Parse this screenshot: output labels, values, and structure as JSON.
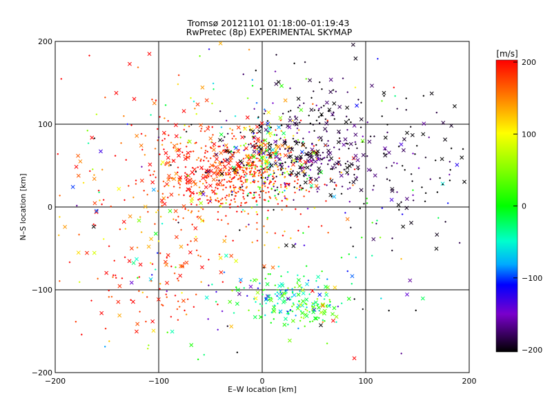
{
  "chart_data": {
    "type": "scatter",
    "title": "Tromsø 20121101 01:18:00–01:19:43",
    "subtitle": "RwPretec (8p) EXPERIMENTAL SKYMAP",
    "xlabel": "E–W location [km]",
    "ylabel": "N–S location [km]",
    "xlim": [
      -200,
      200
    ],
    "ylim": [
      -200,
      200
    ],
    "x_ticks": [
      -200,
      -100,
      0,
      100,
      200
    ],
    "y_ticks": [
      -200,
      -100,
      0,
      100,
      200
    ],
    "x_tick_labels": [
      "−200",
      "−100",
      "0",
      "100",
      "200"
    ],
    "y_tick_labels": [
      "−200",
      "−100",
      "0",
      "100",
      "200"
    ],
    "grid": "on",
    "colorbar": {
      "label": "[m/s]",
      "range": [
        -200,
        200
      ],
      "ticks": [
        200,
        100,
        0,
        -100,
        -200
      ],
      "tick_labels": [
        "200",
        "100",
        "0",
        "−100",
        "−200"
      ]
    },
    "markers": {
      "near_range": "dot",
      "far_range": "cross"
    },
    "clusters": [
      {
        "cx": -30,
        "cy": 40,
        "sx": 40,
        "sy": 25,
        "vmean": 185,
        "vsd": 25,
        "n": 520
      },
      {
        "cx": 5,
        "cy": 45,
        "sx": 18,
        "sy": 30,
        "vmean": 60,
        "vsd": 80,
        "n": 160
      },
      {
        "cx": 40,
        "cy": 60,
        "sx": 40,
        "sy": 25,
        "vmean": -185,
        "vsd": 25,
        "n": 300
      },
      {
        "cx": 60,
        "cy": 130,
        "sx": 35,
        "sy": 30,
        "vmean": -190,
        "vsd": 15,
        "n": 70
      },
      {
        "cx": 20,
        "cy": -110,
        "sx": 25,
        "sy": 15,
        "vmean": -30,
        "vsd": 50,
        "n": 150
      },
      {
        "cx": 50,
        "cy": -125,
        "sx": 12,
        "sy": 10,
        "vmean": 20,
        "vsd": 40,
        "n": 40
      },
      {
        "cx": -80,
        "cy": 20,
        "sx": 70,
        "sy": 90,
        "vmean": 170,
        "vsd": 50,
        "n": 260
      },
      {
        "cx": 20,
        "cy": 0,
        "sx": 110,
        "sy": 110,
        "vmean": -60,
        "vsd": 130,
        "n": 220
      },
      {
        "cx": 130,
        "cy": 40,
        "sx": 40,
        "sy": 60,
        "vmean": -190,
        "vsd": 20,
        "n": 90
      },
      {
        "cx": -120,
        "cy": -90,
        "sx": 40,
        "sy": 40,
        "vmean": 190,
        "vsd": 20,
        "n": 60
      }
    ]
  }
}
